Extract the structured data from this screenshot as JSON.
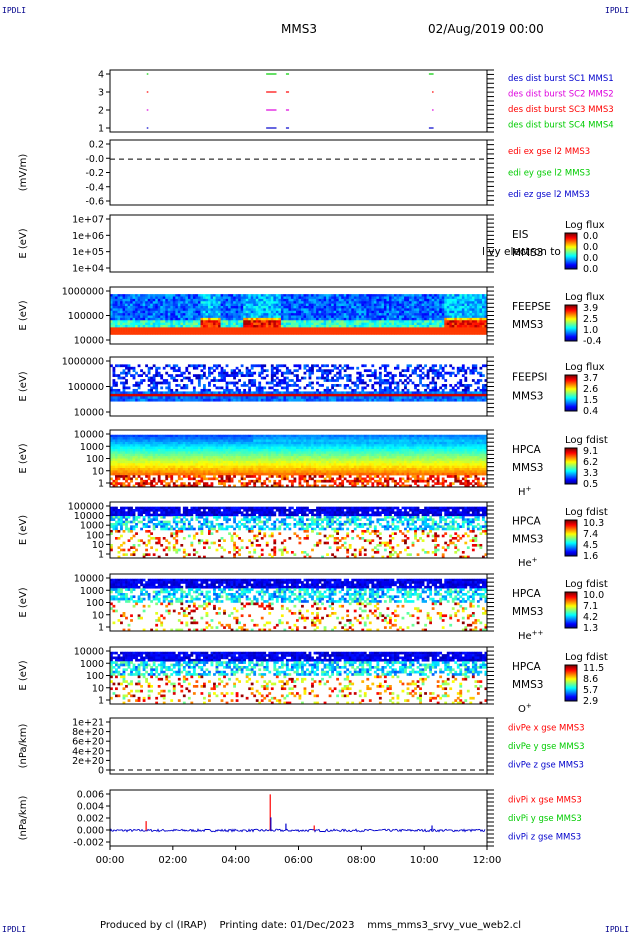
{
  "header": {
    "corner_label": "IPDLI",
    "spacecraft": "MMS3",
    "datetime": "02/Aug/2019 00:00"
  },
  "footer": {
    "producer": "Produced by cl (IRAP)",
    "printing_date": "Printing date: 01/Dec/2023",
    "file": "mms_mms3_srvy_vue_web2.cl"
  },
  "colors": {
    "red": "#ff0000",
    "magenta": "#dd00dd",
    "green": "#00cc00",
    "blue": "#0000cc"
  },
  "chart_data": [
    {
      "type": "line",
      "panel": "burst-availability",
      "y_ticks": [
        "4",
        "3",
        "2",
        "1"
      ],
      "legend": [
        {
          "label": "des dist burst SC1 MMS1",
          "color": "#0000cc"
        },
        {
          "label": "des dist burst SC2 MMS2",
          "color": "#dd00dd"
        },
        {
          "label": "des dist burst SC3 MMS3",
          "color": "#ff0000"
        },
        {
          "label": "des dist burst SC4 MMS4",
          "color": "#00cc00"
        }
      ],
      "segments": [
        {
          "y": 4,
          "color": "#00cc00",
          "x": [
            [
              1.17,
              1.22
            ],
            [
              4.97,
              5.3
            ],
            [
              5.6,
              5.7
            ],
            [
              10.15,
              10.3
            ]
          ]
        },
        {
          "y": 3,
          "color": "#ff0000",
          "x": [
            [
              1.17,
              1.22
            ],
            [
              4.97,
              5.3
            ],
            [
              5.6,
              5.7
            ],
            [
              10.25,
              10.3
            ]
          ]
        },
        {
          "y": 2,
          "color": "#dd00dd",
          "x": [
            [
              1.17,
              1.22
            ],
            [
              4.97,
              5.3
            ],
            [
              5.6,
              5.7
            ],
            [
              10.25,
              10.3
            ]
          ]
        },
        {
          "y": 1,
          "color": "#0000cc",
          "x": [
            [
              1.17,
              1.22
            ],
            [
              4.97,
              5.3
            ],
            [
              5.6,
              5.7
            ],
            [
              10.15,
              10.3
            ]
          ]
        }
      ]
    },
    {
      "type": "line",
      "panel": "edi-field",
      "ylabel": "(mV/m)",
      "y_ticks": [
        "0.2",
        "-0.0",
        "-0.2",
        "-0.4",
        "-0.6"
      ],
      "ylim": [
        -0.6,
        0.25
      ],
      "dashed_zero": true,
      "legend": [
        {
          "label": "edi ex gse l2 MMS3",
          "color": "#ff0000"
        },
        {
          "label": "edi ey gse l2 MMS3",
          "color": "#00cc00"
        },
        {
          "label": "edi ez gse l2 MMS3",
          "color": "#0000cc"
        }
      ]
    },
    {
      "type": "heatmap",
      "panel": "eis",
      "ylabel": "E (eV)",
      "y_ticks": [
        "1e+07",
        "1e+06",
        "1e+05",
        "1e+04"
      ],
      "instrument": "EIS",
      "overlay_text": "l  vy electron to",
      "spacecraft": "MMS3",
      "colorbar_title": "Log flux",
      "colorbar_ticks": [
        "0.0",
        "0.0",
        "0.0",
        "0.0"
      ],
      "empty": true
    },
    {
      "type": "heatmap",
      "panel": "feeps-electron",
      "ylabel": "E (eV)",
      "y_ticks": [
        "1000000",
        "100000",
        "10000"
      ],
      "instrument": "FEEPSE",
      "spacecraft": "MMS3",
      "colorbar_title": "Log flux",
      "colorbar_ticks": [
        "3.9",
        "2.5",
        "1.0",
        "-0.4"
      ]
    },
    {
      "type": "heatmap",
      "panel": "feeps-ion",
      "ylabel": "E (eV)",
      "y_ticks": [
        "1000000",
        "100000",
        "10000"
      ],
      "instrument": "FEEPSI",
      "spacecraft": "MMS3",
      "colorbar_title": "Log flux",
      "colorbar_ticks": [
        "3.7",
        "2.6",
        "1.5",
        "0.4"
      ]
    },
    {
      "type": "heatmap",
      "panel": "hpca-hplus",
      "ylabel": "E (eV)",
      "y_ticks": [
        "10000",
        "1000",
        "100",
        "10",
        "1"
      ],
      "instrument": "HPCA",
      "spacecraft": "MMS3",
      "species": "H",
      "species_sup": "+",
      "colorbar_title": "Log fdist",
      "colorbar_ticks": [
        "9.1",
        "6.2",
        "3.3",
        "0.5"
      ]
    },
    {
      "type": "heatmap",
      "panel": "hpca-heplus",
      "ylabel": "E (eV)",
      "y_ticks": [
        "100000",
        "10000",
        "1000",
        "100",
        "10",
        "1"
      ],
      "instrument": "HPCA",
      "spacecraft": "MMS3",
      "species": "He",
      "species_sup": "+",
      "colorbar_title": "Log fdist",
      "colorbar_ticks": [
        "10.3",
        "7.4",
        "4.5",
        "1.6"
      ]
    },
    {
      "type": "heatmap",
      "panel": "hpca-heplusplus",
      "ylabel": "E (eV)",
      "y_ticks": [
        "10000",
        "1000",
        "100",
        "10",
        "1"
      ],
      "instrument": "HPCA",
      "spacecraft": "MMS3",
      "species": "He",
      "species_sup": "++",
      "colorbar_title": "Log fdist",
      "colorbar_ticks": [
        "10.0",
        "7.1",
        "4.2",
        "1.3"
      ]
    },
    {
      "type": "heatmap",
      "panel": "hpca-oplus",
      "ylabel": "E (eV)",
      "y_ticks": [
        "10000",
        "1000",
        "100",
        "10",
        "1"
      ],
      "instrument": "HPCA",
      "spacecraft": "MMS3",
      "species": "O",
      "species_sup": "+",
      "colorbar_title": "Log fdist",
      "colorbar_ticks": [
        "11.5",
        "8.6",
        "5.7",
        "2.9"
      ]
    },
    {
      "type": "line",
      "panel": "divpe",
      "ylabel": "(nPa/km)",
      "y_ticks": [
        "1e+21",
        "8e+20",
        "6e+20",
        "4e+20",
        "2e+20",
        "0"
      ],
      "ylim": [
        0,
        1e+21
      ],
      "dashed_zero": true,
      "legend": [
        {
          "label": "divPe x gse MMS3",
          "color": "#ff0000"
        },
        {
          "label": "divPe y gse MMS3",
          "color": "#00cc00"
        },
        {
          "label": "divPe z gse MMS3",
          "color": "#0000cc"
        }
      ]
    },
    {
      "type": "line",
      "panel": "divpi",
      "ylabel": "(nPa/km)",
      "y_ticks": [
        "0.006",
        "0.004",
        "0.002",
        "0.000",
        "-0.002"
      ],
      "ylim": [
        -0.0025,
        0.0065
      ],
      "legend": [
        {
          "label": "divPi x gse MMS3",
          "color": "#ff0000"
        },
        {
          "label": "divPi y gse MMS3",
          "color": "#00cc00"
        },
        {
          "label": "divPi z gse MMS3",
          "color": "#0000cc"
        }
      ],
      "spikes": [
        {
          "x": 1.15,
          "y": 0.0015,
          "color": "#ff0000"
        },
        {
          "x": 5.1,
          "y": 0.0058,
          "color": "#ff0000"
        },
        {
          "x": 5.12,
          "y": 0.0021,
          "color": "#0000cc"
        },
        {
          "x": 5.6,
          "y": 0.0011,
          "color": "#0000cc"
        },
        {
          "x": 6.5,
          "y": 0.0008,
          "color": "#ff0000"
        },
        {
          "x": 10.25,
          "y": 0.0008,
          "color": "#0000cc"
        }
      ]
    }
  ],
  "x_axis": {
    "tick_labels": [
      "00:00",
      "02:00",
      "04:00",
      "06:00",
      "08:00",
      "10:00",
      "12:00"
    ],
    "xlim": [
      0,
      12
    ]
  }
}
